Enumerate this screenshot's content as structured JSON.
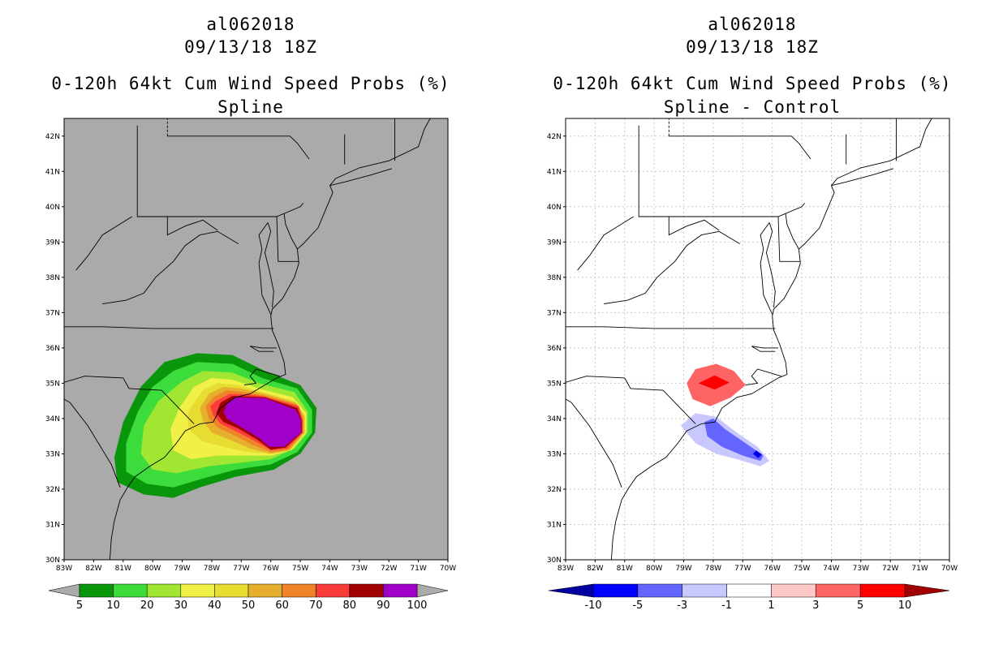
{
  "left_panel": {
    "storm_id": "al062018",
    "datetime": "09/13/18 18Z",
    "product": "0-120h 64kt Cum Wind Speed Probs (%)",
    "subtitle": "Spline",
    "background_color": "#aaaaaa",
    "colorbar": {
      "labels": [
        "5",
        "10",
        "20",
        "30",
        "40",
        "50",
        "60",
        "70",
        "80",
        "90",
        "100"
      ],
      "colors": [
        "#0a960a",
        "#3cdc3c",
        "#a0e632",
        "#f0f046",
        "#e6dc32",
        "#e6af2d",
        "#f08228",
        "#fa3c3c",
        "#a00000",
        "#a000c8"
      ]
    }
  },
  "right_panel": {
    "storm_id": "al062018",
    "datetime": "09/13/18 18Z",
    "product": "0-120h 64kt Cum Wind Speed Probs (%)",
    "subtitle": "Spline - Control",
    "background_color": "#ffffff",
    "colorbar": {
      "labels": [
        "-10",
        "-5",
        "-3",
        "-1",
        "1",
        "3",
        "5",
        "10"
      ],
      "colors": [
        "#0000a0",
        "#0000ff",
        "#6464ff",
        "#c8c8ff",
        "#ffffff",
        "#ffc8c8",
        "#ff6464",
        "#ff0000",
        "#a00000"
      ]
    }
  },
  "map": {
    "lat_labels": [
      "30N",
      "31N",
      "32N",
      "33N",
      "34N",
      "35N",
      "36N",
      "37N",
      "38N",
      "39N",
      "40N",
      "41N",
      "42N"
    ],
    "lon_labels": [
      "83W",
      "82W",
      "81W",
      "80W",
      "79W",
      "78W",
      "77W",
      "76W",
      "75W",
      "74W",
      "73W",
      "72W",
      "71W",
      "70W"
    ],
    "lat_values": [
      30,
      31,
      32,
      33,
      34,
      35,
      36,
      37,
      38,
      39,
      40,
      41,
      42
    ],
    "lon_values": [
      -83,
      -82,
      -81,
      -80,
      -79,
      -78,
      -77,
      -76,
      -75,
      -74,
      -73,
      -72,
      -71,
      -70
    ],
    "lat_range": [
      30,
      42.5
    ],
    "lon_range": [
      -83,
      -70
    ],
    "grid_color": "#c8c8c8",
    "coast_color": "#000000"
  }
}
